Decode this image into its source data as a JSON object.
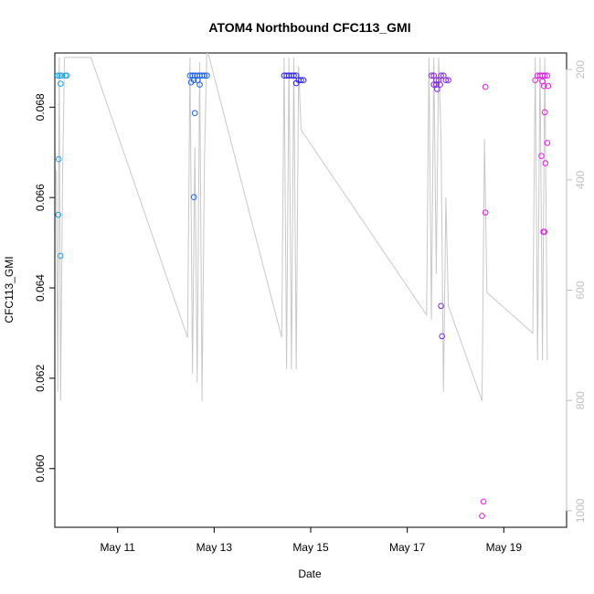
{
  "chart_data": {
    "type": "scatter",
    "title": "ATOM4 Northbound CFC113_GMI",
    "xlabel": "Date",
    "ylabel": "CFC113_GMI",
    "x_ticks": [
      "May 11",
      "May 13",
      "May 15",
      "May 17",
      "May 19"
    ],
    "y_ticks": [
      "0.060",
      "0.062",
      "0.064",
      "0.066",
      "0.068"
    ],
    "y2_ticks": [
      "200",
      "400",
      "600",
      "800",
      "1000"
    ],
    "xlim_days": [
      9.7,
      20.3
    ],
    "ylim": [
      0.0587,
      0.0692
    ],
    "y2lim_inverted": [
      1030,
      170
    ],
    "secondary_axis_color": "#bebebe",
    "line_color": "#c8c8c8",
    "series": [
      {
        "color": "#1ba3e8",
        "points": [
          [
            9.76,
            0.0687
          ],
          [
            9.8,
            0.0687
          ],
          [
            9.84,
            0.0687
          ],
          [
            9.78,
            0.06685
          ],
          [
            9.77,
            0.06562
          ],
          [
            9.82,
            0.06471
          ],
          [
            9.82,
            0.06852
          ],
          [
            9.92,
            0.0687
          ],
          [
            9.95,
            0.0687
          ]
        ]
      },
      {
        "color": "#1c63e8",
        "points": [
          [
            12.5,
            0.0687
          ],
          [
            12.55,
            0.0687
          ],
          [
            12.6,
            0.0687
          ],
          [
            12.65,
            0.0687
          ],
          [
            12.7,
            0.0687
          ],
          [
            12.75,
            0.0687
          ],
          [
            12.8,
            0.0687
          ],
          [
            12.85,
            0.0687
          ],
          [
            12.52,
            0.06855
          ],
          [
            12.58,
            0.0686
          ],
          [
            12.66,
            0.0686
          ],
          [
            12.7,
            0.0685
          ],
          [
            12.6,
            0.06787
          ],
          [
            12.58,
            0.06601
          ],
          [
            12.55,
            0.0687
          ]
        ]
      },
      {
        "color": "#2a22f0",
        "points": [
          [
            14.45,
            0.0687
          ],
          [
            14.5,
            0.0687
          ],
          [
            14.55,
            0.0687
          ],
          [
            14.6,
            0.0687
          ],
          [
            14.65,
            0.0687
          ],
          [
            14.7,
            0.0687
          ],
          [
            14.75,
            0.0686
          ],
          [
            14.8,
            0.0686
          ],
          [
            14.85,
            0.0686
          ],
          [
            14.7,
            0.06853
          ]
        ]
      },
      {
        "color": "#7f22e6",
        "points": [
          [
            17.5,
            0.0687
          ],
          [
            17.55,
            0.0687
          ],
          [
            17.6,
            0.0686
          ],
          [
            17.65,
            0.0686
          ],
          [
            17.7,
            0.0687
          ],
          [
            17.75,
            0.0687
          ],
          [
            17.8,
            0.0686
          ],
          [
            17.55,
            0.0685
          ],
          [
            17.6,
            0.0685
          ],
          [
            17.62,
            0.0684
          ],
          [
            17.68,
            0.0685
          ],
          [
            17.7,
            0.0636
          ],
          [
            17.72,
            0.06293
          ],
          [
            17.85,
            0.0686
          ]
        ]
      },
      {
        "color": "#e21ae2",
        "points": [
          [
            18.55,
            0.05895
          ],
          [
            18.58,
            0.05927
          ],
          [
            18.62,
            0.06567
          ],
          [
            18.62,
            0.06845
          ],
          [
            19.65,
            0.0686
          ],
          [
            19.7,
            0.0687
          ],
          [
            19.75,
            0.0687
          ],
          [
            19.8,
            0.0687
          ],
          [
            19.85,
            0.0687
          ],
          [
            19.9,
            0.0687
          ],
          [
            19.78,
            0.06692
          ],
          [
            19.8,
            0.06857
          ],
          [
            19.83,
            0.06847
          ],
          [
            19.85,
            0.06789
          ],
          [
            19.86,
            0.06676
          ],
          [
            19.9,
            0.06721
          ],
          [
            19.82,
            0.06524
          ],
          [
            19.84,
            0.06524
          ],
          [
            19.92,
            0.06847
          ]
        ]
      }
    ],
    "trace_days": [
      9.73,
      9.76,
      9.79,
      9.82,
      9.86,
      9.9,
      10.45,
      12.45,
      12.5,
      12.55,
      12.6,
      12.65,
      12.7,
      12.75,
      12.8,
      12.85,
      14.4,
      14.45,
      14.5,
      14.55,
      14.6,
      14.65,
      14.7,
      14.75,
      14.8,
      17.4,
      17.45,
      17.5,
      17.55,
      17.6,
      17.65,
      17.7,
      17.75,
      17.8,
      17.85,
      18.55,
      18.6,
      18.65,
      19.6,
      19.65,
      19.7,
      19.75,
      19.8,
      19.85,
      19.9
    ],
    "trace_values": [
      0.0666,
      0.0617,
      0.0691,
      0.0615,
      0.0665,
      0.0691,
      0.0691,
      0.0629,
      0.0691,
      0.0621,
      0.0671,
      0.0619,
      0.069,
      0.0615,
      0.0669,
      0.0693,
      0.0629,
      0.0691,
      0.0622,
      0.0691,
      0.0622,
      0.0691,
      0.0622,
      0.0689,
      0.0675,
      0.0634,
      0.0691,
      0.0633,
      0.0691,
      0.0643,
      0.0691,
      0.0673,
      0.0617,
      0.066,
      0.0636,
      0.0615,
      0.0673,
      0.0639,
      0.063,
      0.0691,
      0.0624,
      0.0691,
      0.0624,
      0.0691,
      0.0624
    ]
  }
}
